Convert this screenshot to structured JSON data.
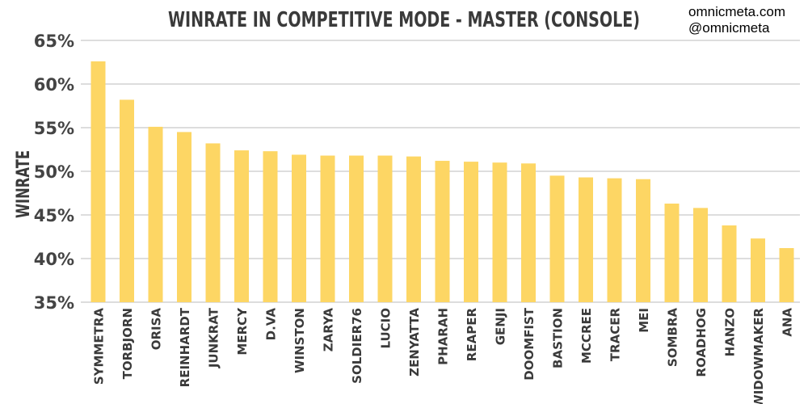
{
  "credits": {
    "line1": "omnicmeta.com",
    "line2": "@omnicmeta"
  },
  "colors": {
    "bar": "#FDD664",
    "grid": "#bbbbbb",
    "text": "#3a3a3a"
  },
  "chart_data": {
    "type": "bar",
    "title": "WINRATE IN COMPETITIVE MODE - MASTER (CONSOLE)",
    "xlabel": "",
    "ylabel": "WINRATE",
    "ylim": [
      35,
      65
    ],
    "yticks": [
      35,
      40,
      45,
      50,
      55,
      60,
      65
    ],
    "ytick_labels": [
      "35%",
      "40%",
      "45%",
      "50%",
      "55%",
      "60%",
      "65%"
    ],
    "grid": true,
    "categories": [
      "SYMMETRA",
      "TORBJORN",
      "ORISA",
      "REINHARDT",
      "JUNKRAT",
      "MERCY",
      "D.VA",
      "WINSTON",
      "ZARYA",
      "SOLDIER76",
      "LUCIO",
      "ZENYATTA",
      "PHARAH",
      "REAPER",
      "GENJI",
      "DOOMFIST",
      "BASTION",
      "MCCREE",
      "TRACER",
      "MEI",
      "SOMBRA",
      "ROADHOG",
      "HANZO",
      "WIDOWMAKER",
      "ANA"
    ],
    "values": [
      62.6,
      58.2,
      55.1,
      54.5,
      53.2,
      52.4,
      52.3,
      51.9,
      51.8,
      51.8,
      51.8,
      51.7,
      51.2,
      51.1,
      51.0,
      50.9,
      49.5,
      49.3,
      49.2,
      49.1,
      46.3,
      45.8,
      43.8,
      42.3,
      41.2
    ]
  }
}
